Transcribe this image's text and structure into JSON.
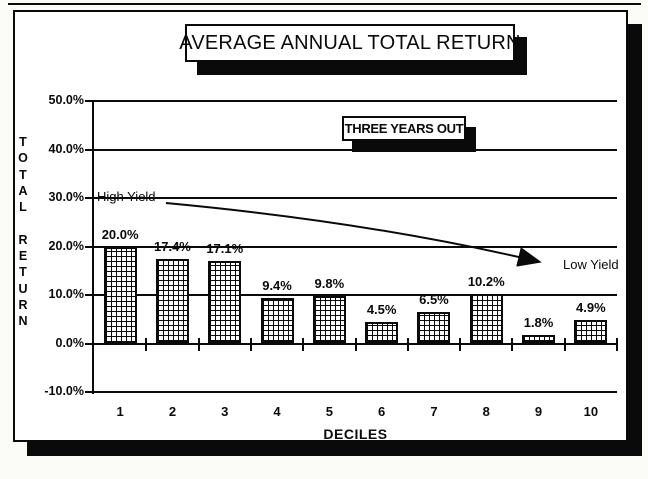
{
  "page": {
    "title": "AVERAGE ANNUAL TOTAL RETURN",
    "badge": "THREE YEARS OUT"
  },
  "annotations": {
    "high": "High Yield",
    "low": "Low Yield"
  },
  "colors": {
    "ink": "#0a0a0a",
    "paper": "#ffffff"
  },
  "chart_data": {
    "type": "bar",
    "title": "AVERAGE ANNUAL TOTAL RETURN",
    "subtitle": "THREE YEARS OUT",
    "categories": [
      "1",
      "2",
      "3",
      "4",
      "5",
      "6",
      "7",
      "8",
      "9",
      "10"
    ],
    "values": [
      20.0,
      17.4,
      17.1,
      9.4,
      9.8,
      4.5,
      6.5,
      10.2,
      1.8,
      4.9
    ],
    "bar_labels": [
      "20.0%",
      "17.4%",
      "17.1%",
      "9.4%",
      "9.8%",
      "4.5%",
      "6.5%",
      "10.2%",
      "1.8%",
      "4.9%"
    ],
    "xlabel": "DECILES",
    "ylabel": "TOTAL RETURN",
    "ylim": [
      -10,
      50
    ],
    "yticks": [
      50,
      40,
      30,
      20,
      10,
      0,
      -10
    ],
    "ytick_labels": [
      "50.0%",
      "40.0%",
      "30.0%",
      "20.0%",
      "10.0%",
      "0.0%",
      "-10.0%"
    ],
    "grid": true,
    "legend": false,
    "bar_style": "crosshatch",
    "annotations": [
      {
        "text": "High Yield",
        "position": "upper-left"
      },
      {
        "text": "Low Yield",
        "position": "right",
        "arrow": true
      }
    ]
  }
}
